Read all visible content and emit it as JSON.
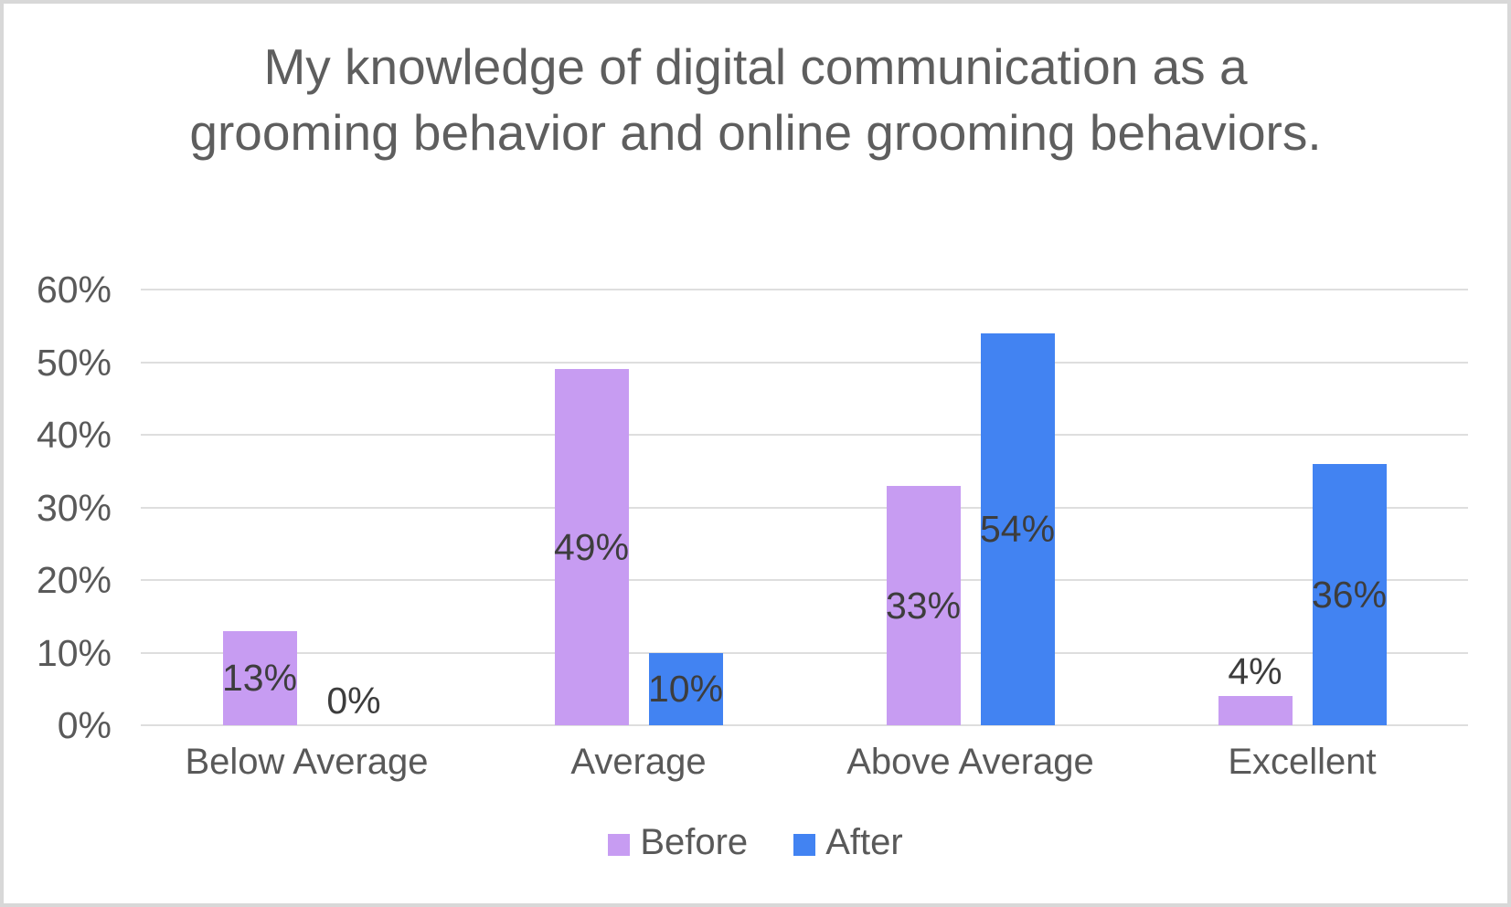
{
  "chart_data": {
    "type": "bar",
    "title": "My knowledge of digital communication as a grooming behavior and online grooming behaviors.",
    "categories": [
      "Below Average",
      "Average",
      "Above Average",
      "Excellent"
    ],
    "series": [
      {
        "name": "Before",
        "color": "#c79cf2",
        "values": [
          13,
          49,
          33,
          4
        ],
        "data_labels": [
          "13%",
          "49%",
          "33%",
          "4%"
        ]
      },
      {
        "name": "After",
        "color": "#4283f2",
        "values": [
          0,
          10,
          54,
          36
        ],
        "data_labels": [
          "0%",
          "10%",
          "54%",
          "36%"
        ]
      }
    ],
    "y_axis": {
      "min": 0,
      "max": 60,
      "step": 10,
      "tick_labels": [
        "0%",
        "10%",
        "20%",
        "30%",
        "40%",
        "50%",
        "60%"
      ]
    },
    "legend": {
      "position": "bottom",
      "entries": [
        "Before",
        "After"
      ]
    },
    "grid": true,
    "colors": {
      "grid_line": "#dedede",
      "axis_text": "#595959",
      "title_text": "#5e5e5e",
      "data_label_text": "#3d3d3d",
      "frame_border": "#d8d8d8",
      "background": "#ffffff"
    }
  }
}
